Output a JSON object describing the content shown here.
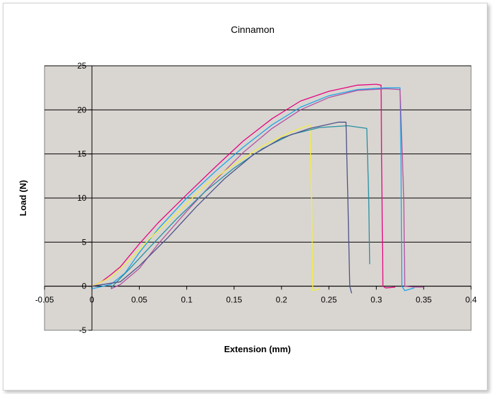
{
  "chart_data": {
    "type": "line",
    "title": "Cinnamon",
    "xlabel": "Extension (mm)",
    "ylabel": "Load (N)",
    "xlim": [
      -0.05,
      0.4
    ],
    "ylim": [
      -5,
      25
    ],
    "x_ticks": [
      -0.05,
      0,
      0.05,
      0.1,
      0.15,
      0.2,
      0.25,
      0.3,
      0.35,
      0.4
    ],
    "x_tick_labels": [
      "-0.05",
      "0",
      "0.05",
      "0.1",
      "0.15",
      "0.2",
      "0.25",
      "0.3",
      "0.35",
      "0.4"
    ],
    "y_ticks": [
      -5,
      0,
      5,
      10,
      15,
      20,
      25
    ],
    "y_tick_labels": [
      "-5",
      "0",
      "5",
      "10",
      "15",
      "20",
      "25"
    ],
    "grid": "horizontal",
    "legend": "none",
    "plot_background": "#d9d5d1",
    "series": [
      {
        "color": "#e6007e",
        "points": [
          [
            0,
            0
          ],
          [
            0.01,
            0.5
          ],
          [
            0.02,
            1.3
          ],
          [
            0.03,
            2.2
          ],
          [
            0.05,
            4.8
          ],
          [
            0.07,
            7.2
          ],
          [
            0.1,
            10.4
          ],
          [
            0.13,
            13.5
          ],
          [
            0.16,
            16.5
          ],
          [
            0.19,
            19.0
          ],
          [
            0.22,
            21.0
          ],
          [
            0.25,
            22.1
          ],
          [
            0.28,
            22.8
          ],
          [
            0.3,
            22.9
          ],
          [
            0.305,
            22.8
          ],
          [
            0.306,
            10
          ],
          [
            0.307,
            0
          ],
          [
            0.31,
            -0.2
          ],
          [
            0.32,
            -0.1
          ]
        ]
      },
      {
        "color": "#1aa3e8",
        "points": [
          [
            0,
            -0.3
          ],
          [
            0.02,
            0.2
          ],
          [
            0.035,
            1.5
          ],
          [
            0.05,
            3.8
          ],
          [
            0.07,
            6.5
          ],
          [
            0.1,
            10.0
          ],
          [
            0.13,
            13.0
          ],
          [
            0.16,
            15.8
          ],
          [
            0.19,
            18.3
          ],
          [
            0.22,
            20.3
          ],
          [
            0.25,
            21.6
          ],
          [
            0.28,
            22.3
          ],
          [
            0.31,
            22.5
          ],
          [
            0.325,
            22.5
          ],
          [
            0.326,
            15
          ],
          [
            0.327,
            0
          ],
          [
            0.33,
            -0.5
          ],
          [
            0.34,
            -0.2
          ]
        ]
      },
      {
        "color": "#b04fa0",
        "points": [
          [
            0.02,
            -0.3
          ],
          [
            0.03,
            0.2
          ],
          [
            0.05,
            2.0
          ],
          [
            0.07,
            4.8
          ],
          [
            0.1,
            8.5
          ],
          [
            0.13,
            12.0
          ],
          [
            0.16,
            15.2
          ],
          [
            0.19,
            17.9
          ],
          [
            0.22,
            20.0
          ],
          [
            0.25,
            21.4
          ],
          [
            0.28,
            22.2
          ],
          [
            0.31,
            22.4
          ],
          [
            0.325,
            22.3
          ],
          [
            0.329,
            10
          ],
          [
            0.33,
            0
          ],
          [
            0.34,
            -0.1
          ],
          [
            0.35,
            -0.1
          ]
        ]
      },
      {
        "color": "#f2ef3c",
        "points": [
          [
            0,
            0
          ],
          [
            0.02,
            1.0
          ],
          [
            0.04,
            3.0
          ],
          [
            0.06,
            5.3
          ],
          [
            0.09,
            8.3
          ],
          [
            0.12,
            11.5
          ],
          [
            0.15,
            13.8
          ],
          [
            0.18,
            15.9
          ],
          [
            0.21,
            17.5
          ],
          [
            0.23,
            18.3
          ],
          [
            0.232,
            8
          ],
          [
            0.233,
            -0.5
          ],
          [
            0.24,
            -0.3
          ]
        ]
      },
      {
        "color": "#1e8fa0",
        "points": [
          [
            0.02,
            -0.2
          ],
          [
            0.04,
            2.0
          ],
          [
            0.06,
            4.3
          ],
          [
            0.09,
            7.7
          ],
          [
            0.12,
            10.8
          ],
          [
            0.15,
            13.4
          ],
          [
            0.18,
            15.6
          ],
          [
            0.21,
            17.2
          ],
          [
            0.24,
            18.0
          ],
          [
            0.27,
            18.2
          ],
          [
            0.29,
            17.9
          ],
          [
            0.292,
            10
          ],
          [
            0.293,
            2.5
          ]
        ]
      },
      {
        "color": "#4a4f88",
        "points": [
          [
            0,
            0
          ],
          [
            0.03,
            0.5
          ],
          [
            0.05,
            2.3
          ],
          [
            0.08,
            5.5
          ],
          [
            0.11,
            9.0
          ],
          [
            0.14,
            12.2
          ],
          [
            0.17,
            14.9
          ],
          [
            0.2,
            16.8
          ],
          [
            0.23,
            17.9
          ],
          [
            0.26,
            18.6
          ],
          [
            0.268,
            18.6
          ],
          [
            0.27,
            10
          ],
          [
            0.272,
            0
          ],
          [
            0.274,
            -0.8
          ]
        ]
      }
    ]
  }
}
